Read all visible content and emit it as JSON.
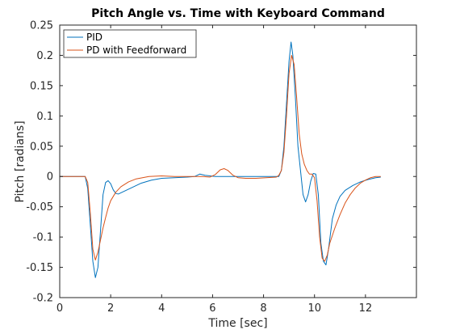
{
  "chart_data": {
    "type": "line",
    "title": "Pitch Angle vs. Time with Keyboard Command",
    "xlabel": "Time [sec]",
    "ylabel": "Pitch [radians]",
    "xlim": [
      0,
      14
    ],
    "ylim": [
      -0.2,
      0.25
    ],
    "xticks": [
      0,
      2,
      4,
      6,
      8,
      10,
      12
    ],
    "xtick_labels": [
      "0",
      "2",
      "4",
      "6",
      "8",
      "10",
      "12"
    ],
    "yticks": [
      -0.2,
      -0.15,
      -0.1,
      -0.05,
      0,
      0.05,
      0.1,
      0.15,
      0.2,
      0.25
    ],
    "ytick_labels": [
      "-0.2",
      "-0.15",
      "-0.1",
      "-0.05",
      "0",
      "0.05",
      "0.1",
      "0.15",
      "0.2",
      "0.25"
    ],
    "grid": false,
    "legend_position": "top-left",
    "series": [
      {
        "name": "PID",
        "color": "#0072BD",
        "points": [
          [
            0,
            0
          ],
          [
            1.0,
            0
          ],
          [
            1.1,
            -0.02
          ],
          [
            1.2,
            -0.08
          ],
          [
            1.3,
            -0.14
          ],
          [
            1.4,
            -0.167
          ],
          [
            1.5,
            -0.15
          ],
          [
            1.6,
            -0.09
          ],
          [
            1.7,
            -0.03
          ],
          [
            1.8,
            -0.01
          ],
          [
            1.9,
            -0.007
          ],
          [
            2.0,
            -0.012
          ],
          [
            2.1,
            -0.022
          ],
          [
            2.2,
            -0.028
          ],
          [
            2.3,
            -0.029
          ],
          [
            2.5,
            -0.025
          ],
          [
            2.8,
            -0.019
          ],
          [
            3.2,
            -0.011
          ],
          [
            3.6,
            -0.006
          ],
          [
            4.0,
            -0.003
          ],
          [
            4.5,
            -0.002
          ],
          [
            5.0,
            -0.001
          ],
          [
            5.3,
            0
          ],
          [
            5.5,
            0.004
          ],
          [
            5.7,
            0.002
          ],
          [
            5.9,
            0.001
          ],
          [
            6.1,
            0
          ],
          [
            6.5,
            0
          ],
          [
            7.0,
            0
          ],
          [
            7.5,
            0
          ],
          [
            8.0,
            0
          ],
          [
            8.3,
            0
          ],
          [
            8.6,
            0
          ],
          [
            8.7,
            0.01
          ],
          [
            8.8,
            0.05
          ],
          [
            8.9,
            0.12
          ],
          [
            9.0,
            0.19
          ],
          [
            9.08,
            0.222
          ],
          [
            9.15,
            0.2
          ],
          [
            9.25,
            0.13
          ],
          [
            9.35,
            0.05
          ],
          [
            9.45,
            0.01
          ],
          [
            9.55,
            -0.03
          ],
          [
            9.65,
            -0.042
          ],
          [
            9.75,
            -0.03
          ],
          [
            9.85,
            -0.008
          ],
          [
            9.95,
            0.005
          ],
          [
            10.05,
            0.004
          ],
          [
            10.15,
            -0.03
          ],
          [
            10.25,
            -0.11
          ],
          [
            10.35,
            -0.14
          ],
          [
            10.45,
            -0.146
          ],
          [
            10.55,
            -0.12
          ],
          [
            10.7,
            -0.07
          ],
          [
            10.85,
            -0.047
          ],
          [
            11.0,
            -0.033
          ],
          [
            11.2,
            -0.023
          ],
          [
            11.5,
            -0.015
          ],
          [
            11.8,
            -0.009
          ],
          [
            12.1,
            -0.005
          ],
          [
            12.4,
            -0.002
          ],
          [
            12.6,
            -0.001
          ]
        ]
      },
      {
        "name": "PD with Feedforward",
        "color": "#D95319",
        "points": [
          [
            0,
            0
          ],
          [
            1.0,
            0
          ],
          [
            1.1,
            -0.01
          ],
          [
            1.2,
            -0.06
          ],
          [
            1.3,
            -0.12
          ],
          [
            1.4,
            -0.138
          ],
          [
            1.5,
            -0.125
          ],
          [
            1.6,
            -0.105
          ],
          [
            1.7,
            -0.085
          ],
          [
            1.8,
            -0.068
          ],
          [
            1.9,
            -0.052
          ],
          [
            2.0,
            -0.04
          ],
          [
            2.2,
            -0.026
          ],
          [
            2.4,
            -0.017
          ],
          [
            2.7,
            -0.009
          ],
          [
            3.0,
            -0.004
          ],
          [
            3.5,
            0
          ],
          [
            4.0,
            0.001
          ],
          [
            4.5,
            0
          ],
          [
            5.0,
            0
          ],
          [
            5.6,
            0
          ],
          [
            5.9,
            -0.001
          ],
          [
            6.1,
            0.003
          ],
          [
            6.3,
            0.011
          ],
          [
            6.45,
            0.013
          ],
          [
            6.6,
            0.01
          ],
          [
            6.8,
            0.002
          ],
          [
            7.0,
            -0.002
          ],
          [
            7.3,
            -0.003
          ],
          [
            7.7,
            -0.003
          ],
          [
            8.1,
            -0.002
          ],
          [
            8.5,
            -0.001
          ],
          [
            8.6,
            0.002
          ],
          [
            8.7,
            0.01
          ],
          [
            8.8,
            0.04
          ],
          [
            8.9,
            0.1
          ],
          [
            9.0,
            0.17
          ],
          [
            9.1,
            0.2
          ],
          [
            9.2,
            0.185
          ],
          [
            9.3,
            0.13
          ],
          [
            9.4,
            0.07
          ],
          [
            9.5,
            0.037
          ],
          [
            9.6,
            0.02
          ],
          [
            9.7,
            0.01
          ],
          [
            9.8,
            0.004
          ],
          [
            9.9,
            0.004
          ],
          [
            10.0,
            -0.002
          ],
          [
            10.1,
            -0.04
          ],
          [
            10.2,
            -0.1
          ],
          [
            10.3,
            -0.135
          ],
          [
            10.4,
            -0.14
          ],
          [
            10.5,
            -0.13
          ],
          [
            10.6,
            -0.11
          ],
          [
            10.8,
            -0.085
          ],
          [
            11.0,
            -0.063
          ],
          [
            11.2,
            -0.044
          ],
          [
            11.4,
            -0.03
          ],
          [
            11.6,
            -0.019
          ],
          [
            11.8,
            -0.011
          ],
          [
            12.0,
            -0.006
          ],
          [
            12.2,
            -0.002
          ],
          [
            12.4,
            0
          ],
          [
            12.6,
            0
          ]
        ]
      }
    ]
  }
}
